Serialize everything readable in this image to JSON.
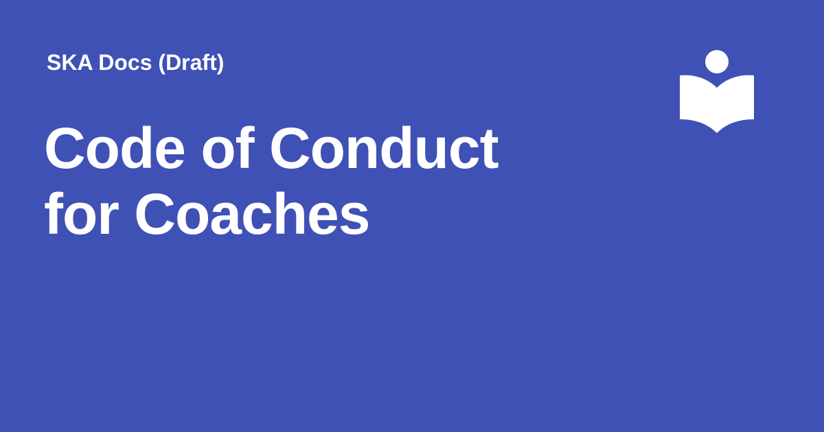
{
  "site": {
    "name": "SKA Docs (Draft)"
  },
  "page": {
    "title_lines": [
      "Code of Conduct",
      "for Coaches"
    ]
  },
  "logo": {
    "icon": "reader-book-icon"
  },
  "colors": {
    "background": "#3f51b5",
    "text": "#ffffff"
  }
}
